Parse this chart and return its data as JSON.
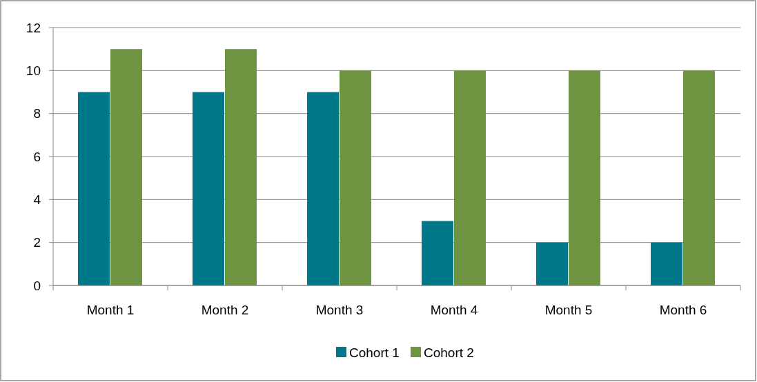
{
  "chart_data": {
    "type": "bar",
    "categories": [
      "Month 1",
      "Month 2",
      "Month 3",
      "Month 4",
      "Month 5",
      "Month 6"
    ],
    "series": [
      {
        "name": "Cohort 1",
        "color": "#00788a",
        "values": [
          9,
          9,
          9,
          3,
          2,
          2
        ]
      },
      {
        "name": "Cohort 2",
        "color": "#6e9441",
        "values": [
          11,
          11,
          10,
          10,
          10,
          10
        ]
      }
    ],
    "ylim": [
      0,
      12
    ],
    "yticks": [
      0,
      2,
      4,
      6,
      8,
      10,
      12
    ],
    "grid": "y",
    "legend": "bottom"
  }
}
